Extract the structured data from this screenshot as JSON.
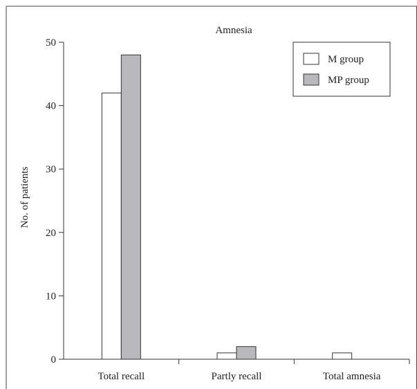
{
  "chart_data": {
    "type": "bar",
    "title": "Amnesia",
    "xlabel": "",
    "ylabel": "No. of patients",
    "categories": [
      "Total recall",
      "Partly recall",
      "Total amnesia"
    ],
    "series": [
      {
        "name": "M group",
        "values": [
          42,
          1,
          1
        ],
        "color": "#ffffff"
      },
      {
        "name": "MP group",
        "values": [
          48,
          2,
          0
        ],
        "color": "#b9b9bd"
      }
    ],
    "ylim": [
      0,
      50
    ],
    "yticks": [
      0,
      10,
      20,
      30,
      40,
      50
    ],
    "grid": false,
    "legend_position": "top-right"
  }
}
